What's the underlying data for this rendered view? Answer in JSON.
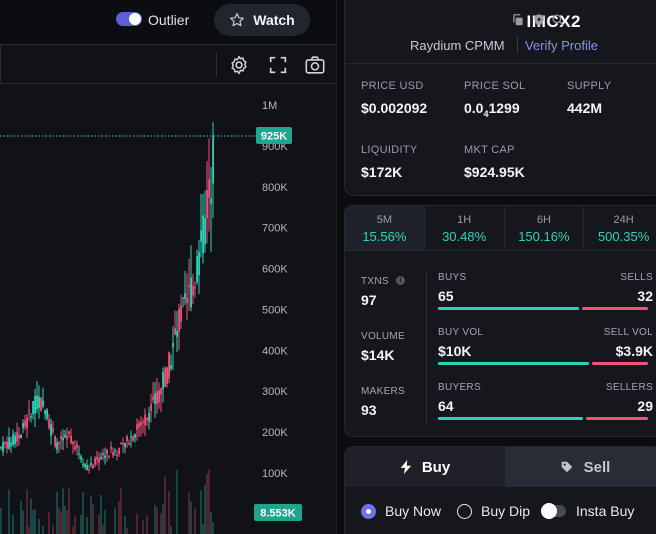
{
  "topbar": {
    "outlier_label": "Outlier",
    "outlier_on": true,
    "watch_label": "Watch"
  },
  "chart_toolbar": {
    "icons": [
      "gear-icon",
      "fullscreen-icon",
      "camera-icon"
    ]
  },
  "chart": {
    "price_axis_labels": [
      "1M",
      "900K",
      "800K",
      "700K",
      "600K",
      "500K",
      "400K",
      "300K",
      "200K",
      "100K"
    ],
    "last_price_badge": "925K",
    "volume_badge": "8.553K"
  },
  "token": {
    "name": "IMCX2",
    "dex": "Raydium CPMM",
    "verify_label": "Verify Profile",
    "icons": [
      "copy-icon",
      "shield-icon",
      "search-icon"
    ],
    "stats": {
      "price_usd_label": "PRICE USD",
      "price_usd": "$0.002092",
      "price_sol_label": "PRICE SOL",
      "price_sol_prefix": "0.0",
      "price_sol_sub": "4",
      "price_sol_suffix": "1299",
      "supply_label": "SUPPLY",
      "supply": "442M",
      "liquidity_label": "LIQUIDITY",
      "liquidity": "$172K",
      "mktcap_label": "MKT CAP",
      "mktcap": "$924.95K"
    }
  },
  "timeframes": [
    {
      "label": "5M",
      "value": "15.56%"
    },
    {
      "label": "1H",
      "value": "30.48%"
    },
    {
      "label": "6H",
      "value": "150.16%"
    },
    {
      "label": "24H",
      "value": "500.35%"
    }
  ],
  "txns": {
    "txns_label": "TXNS",
    "txns_value": "97",
    "volume_label": "VOLUME",
    "volume_value": "$14K",
    "makers_label": "MAKERS",
    "makers_value": "93",
    "buys_label": "BUYS",
    "buys_value": "65",
    "sells_label": "SELLS",
    "sells_value": "32",
    "buys_fraction": 0.67,
    "buyvol_label": "BUY VOL",
    "buyvol_value": "$10K",
    "sellvol_label": "SELL VOL",
    "sellvol_value": "$3.9K",
    "buyvol_fraction": 0.72,
    "buyers_label": "BUYERS",
    "buyers_value": "64",
    "sellers_label": "SELLERS",
    "sellers_value": "29",
    "buyers_fraction": 0.69
  },
  "trade": {
    "buy_tab": "Buy",
    "sell_tab": "Sell",
    "options": [
      "Buy Now",
      "Buy Dip",
      "Insta Buy"
    ],
    "selected_option": "Buy Now"
  },
  "colors": {
    "up": "#2ed3b7",
    "down": "#f0517a",
    "accent": "#6e70ef"
  }
}
